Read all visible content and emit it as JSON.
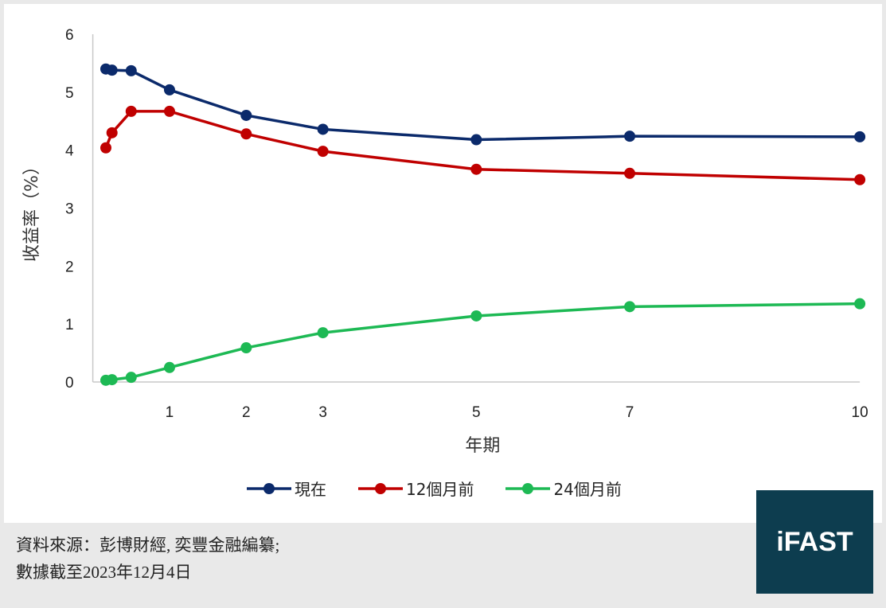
{
  "chart_data": {
    "type": "line",
    "xlabel": "年期",
    "ylabel": "收益率（%）",
    "ylim": [
      0,
      6
    ],
    "yticks": [
      0,
      1,
      2,
      3,
      4,
      5,
      6
    ],
    "xlim": [
      0,
      10
    ],
    "xticks": [
      1,
      2,
      3,
      5,
      7,
      10
    ],
    "x": [
      0.17,
      0.25,
      0.5,
      1,
      2,
      3,
      5,
      7,
      10
    ],
    "grid": false,
    "legend_position": "bottom",
    "series": [
      {
        "name": "現在",
        "color": "#0b2a6b",
        "values": [
          5.4,
          5.38,
          5.37,
          5.04,
          4.6,
          4.36,
          4.18,
          4.24,
          4.23
        ]
      },
      {
        "name": "12個月前",
        "color": "#c00000",
        "values": [
          4.04,
          4.3,
          4.67,
          4.67,
          4.28,
          3.98,
          3.67,
          3.6,
          3.49
        ]
      },
      {
        "name": "24個月前",
        "color": "#1db954",
        "values": [
          0.03,
          0.04,
          0.08,
          0.25,
          0.59,
          0.85,
          1.14,
          1.3,
          1.35
        ]
      }
    ]
  },
  "footer": {
    "source": "資料來源：彭博財經, 奕豐金融編纂;",
    "date": "數據截至2023年12月4日"
  },
  "logo": {
    "text": "iFAST",
    "color": "#0d3d4f"
  }
}
